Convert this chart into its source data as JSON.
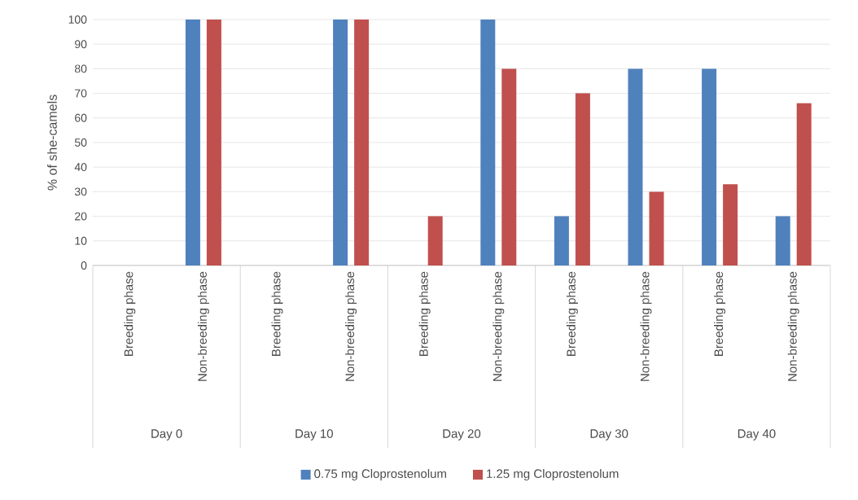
{
  "chart_data": {
    "type": "bar",
    "ylabel": "% of she-camels",
    "categories": [
      "Breeding phase",
      "Non-breeding phase",
      "Breeding phase",
      "Non-breeding phase",
      "Breeding phase",
      "Non-breeding phase",
      "Breeding phase",
      "Non-breeding phase",
      "Breeding phase",
      "Non-breeding phase"
    ],
    "series": [
      {
        "name": "0.75 mg Cloprostenolum",
        "color": "#4f81bd",
        "values": [
          0,
          100,
          0,
          100,
          0,
          100,
          20,
          80,
          80,
          20
        ]
      },
      {
        "name": "1.25 mg Cloprostenolum",
        "color": "#c0504d",
        "values": [
          0,
          100,
          0,
          100,
          20,
          80,
          70,
          30,
          33,
          66
        ]
      }
    ],
    "annotations": [
      "Day 0",
      "Day 10",
      "Day 20",
      "Day 30",
      "Day 40"
    ],
    "ylim": [
      0,
      100
    ],
    "yticks": [
      0,
      10,
      20,
      30,
      40,
      50,
      60,
      70,
      80,
      90,
      100
    ],
    "grid": "y",
    "legend": "bottom"
  }
}
